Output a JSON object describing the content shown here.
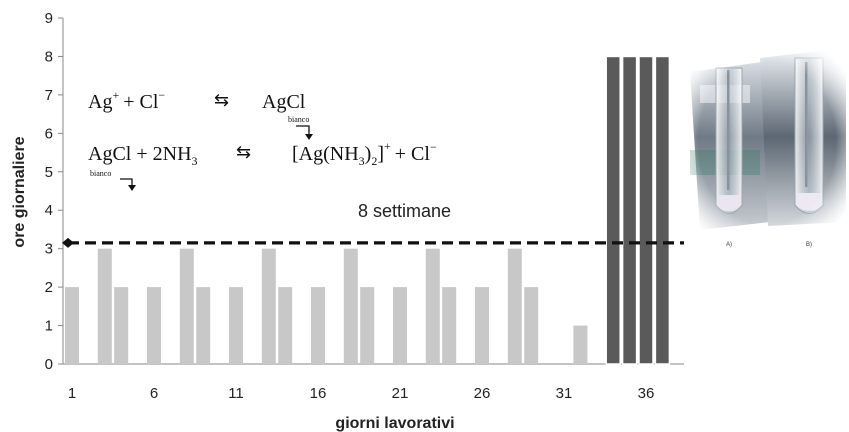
{
  "chart_data": {
    "type": "bar",
    "title": "",
    "xlabel": "giorni lavorativi",
    "ylabel": "ore giornaliere",
    "ylim": [
      0,
      9
    ],
    "yticks": [
      0,
      1,
      2,
      3,
      4,
      5,
      6,
      7,
      8,
      9
    ],
    "xticks": [
      1,
      6,
      11,
      16,
      21,
      26,
      31,
      36
    ],
    "x": [
      1,
      2,
      3,
      4,
      5,
      6,
      7,
      8,
      9,
      10,
      11,
      12,
      13,
      14,
      15,
      16,
      17,
      18,
      19,
      20,
      21,
      22,
      23,
      24,
      25,
      26,
      27,
      28,
      29,
      30,
      31,
      32,
      33,
      34,
      35,
      36,
      37
    ],
    "series": [
      {
        "color": "#c8c8c8",
        "values": [
          2,
          0,
          3,
          2,
          0,
          2,
          0,
          3,
          2,
          0,
          2,
          0,
          3,
          2,
          0,
          2,
          0,
          3,
          2,
          0,
          2,
          0,
          3,
          2,
          0,
          2,
          0,
          3,
          2,
          0,
          0,
          1,
          0,
          0,
          0,
          0,
          0
        ]
      },
      {
        "color": "#5a5a5a",
        "values": [
          0,
          0,
          0,
          0,
          0,
          0,
          0,
          0,
          0,
          0,
          0,
          0,
          0,
          0,
          0,
          0,
          0,
          0,
          0,
          0,
          0,
          0,
          0,
          0,
          0,
          0,
          0,
          0,
          0,
          0,
          0,
          0,
          0,
          8,
          8,
          8,
          8
        ]
      }
    ],
    "reference_line": {
      "y": 3.15,
      "style": "dashed",
      "color": "#111111"
    },
    "annotations": {
      "duration": "8 settimane",
      "eq1": {
        "ag": "Ag",
        "plus1": "+",
        "sign": "+ Cl",
        "minus": "−",
        "arrow": "⇆",
        "product": "AgCl",
        "label": "bianco"
      },
      "eq2": {
        "left": "AgCl + 2NH",
        "left_sub": "3",
        "arrow": "⇆",
        "complex": "[Ag(NH",
        "complex_sub": "3",
        "complex_close": ")",
        "complex_sub2": "2",
        "complex_end": "]",
        "plus": "+",
        "tail": "+ Cl",
        "minus": "−",
        "label": "bianco"
      }
    },
    "photo_labels": [
      "A)",
      "B)"
    ]
  }
}
